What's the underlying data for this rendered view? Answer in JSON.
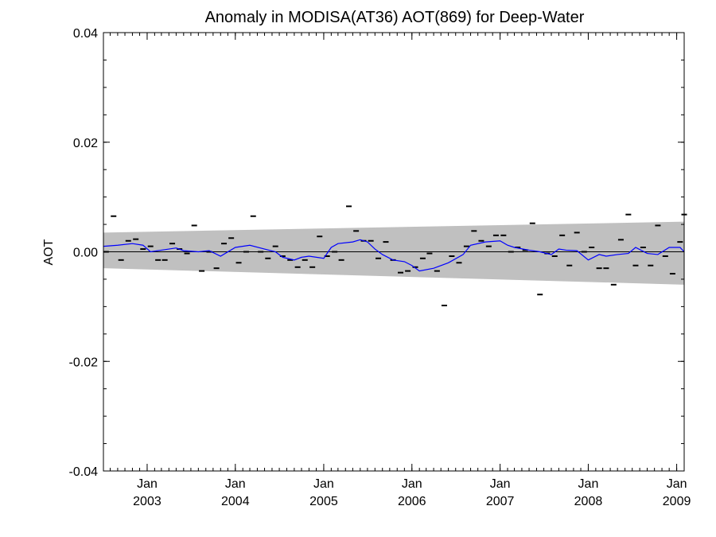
{
  "chart_data": {
    "type": "line",
    "title": "Anomaly in MODISA(AT36) AOT(869) for Deep-Water",
    "ylabel": "AOT",
    "xlabel": "",
    "ylim": [
      -0.04,
      0.04
    ],
    "xlim": [
      "2002-07-04",
      "2009-02-01"
    ],
    "y_ticks": [
      {
        "value": 0.04,
        "label": "0.04"
      },
      {
        "value": 0.02,
        "label": "0.02"
      },
      {
        "value": 0.0,
        "label": "0.00"
      },
      {
        "value": -0.02,
        "label": "-0.02"
      },
      {
        "value": -0.04,
        "label": "-0.04"
      }
    ],
    "x_ticks": [
      {
        "date": "2003-01-01",
        "month": "Jan",
        "year": "2003"
      },
      {
        "date": "2004-01-01",
        "month": "Jan",
        "year": "2004"
      },
      {
        "date": "2005-01-01",
        "month": "Jan",
        "year": "2005"
      },
      {
        "date": "2006-01-01",
        "month": "Jan",
        "year": "2006"
      },
      {
        "date": "2007-01-01",
        "month": "Jan",
        "year": "2007"
      },
      {
        "date": "2008-01-01",
        "month": "Jan",
        "year": "2008"
      },
      {
        "date": "2009-01-01",
        "month": "Jan",
        "year": "2009"
      }
    ],
    "grid": false,
    "zero_line": true,
    "band": {
      "color": "#c0c0c0",
      "upper": [
        {
          "x": "2002-07-04",
          "y": 0.0035
        },
        {
          "x": "2009-02-01",
          "y": 0.0055
        }
      ],
      "lower": [
        {
          "x": "2002-07-04",
          "y": -0.003
        },
        {
          "x": "2009-02-01",
          "y": -0.006
        }
      ]
    },
    "series": [
      {
        "kind": "markers",
        "color": "#000000",
        "points": [
          {
            "x": "2002-07-15",
            "y": 0.0
          },
          {
            "x": "2002-08-15",
            "y": 0.0065
          },
          {
            "x": "2002-09-15",
            "y": -0.0015
          },
          {
            "x": "2002-10-15",
            "y": 0.002
          },
          {
            "x": "2002-11-15",
            "y": 0.0023
          },
          {
            "x": "2002-12-15",
            "y": 0.0005
          },
          {
            "x": "2003-01-15",
            "y": 0.001
          },
          {
            "x": "2003-02-15",
            "y": -0.0015
          },
          {
            "x": "2003-03-15",
            "y": -0.0015
          },
          {
            "x": "2003-04-15",
            "y": 0.0015
          },
          {
            "x": "2003-05-15",
            "y": 0.0005
          },
          {
            "x": "2003-06-15",
            "y": -0.0003
          },
          {
            "x": "2003-07-15",
            "y": 0.0048
          },
          {
            "x": "2003-08-15",
            "y": -0.0035
          },
          {
            "x": "2003-09-15",
            "y": 0.0
          },
          {
            "x": "2003-10-15",
            "y": -0.003
          },
          {
            "x": "2003-11-15",
            "y": 0.0015
          },
          {
            "x": "2003-12-15",
            "y": 0.0025
          },
          {
            "x": "2004-01-15",
            "y": -0.002
          },
          {
            "x": "2004-02-15",
            "y": 0.0
          },
          {
            "x": "2004-03-15",
            "y": 0.0065
          },
          {
            "x": "2004-04-15",
            "y": 0.0
          },
          {
            "x": "2004-05-15",
            "y": -0.0012
          },
          {
            "x": "2004-06-15",
            "y": 0.001
          },
          {
            "x": "2004-07-15",
            "y": -0.0008
          },
          {
            "x": "2004-08-15",
            "y": -0.0015
          },
          {
            "x": "2004-09-15",
            "y": -0.0028
          },
          {
            "x": "2004-10-15",
            "y": -0.0015
          },
          {
            "x": "2004-11-15",
            "y": -0.0028
          },
          {
            "x": "2004-12-15",
            "y": 0.0028
          },
          {
            "x": "2005-01-15",
            "y": -0.0008
          },
          {
            "x": "2005-02-15",
            "y": 0.0
          },
          {
            "x": "2005-03-15",
            "y": -0.0015
          },
          {
            "x": "2005-04-15",
            "y": 0.0083
          },
          {
            "x": "2005-05-15",
            "y": 0.0038
          },
          {
            "x": "2005-06-15",
            "y": 0.002
          },
          {
            "x": "2005-07-15",
            "y": 0.002
          },
          {
            "x": "2005-08-15",
            "y": -0.0012
          },
          {
            "x": "2005-09-15",
            "y": 0.0018
          },
          {
            "x": "2005-10-15",
            "y": -0.0015
          },
          {
            "x": "2005-11-15",
            "y": -0.0038
          },
          {
            "x": "2005-12-15",
            "y": -0.0035
          },
          {
            "x": "2006-01-15",
            "y": -0.0028
          },
          {
            "x": "2006-02-15",
            "y": -0.0012
          },
          {
            "x": "2006-03-15",
            "y": -0.0003
          },
          {
            "x": "2006-04-15",
            "y": -0.0035
          },
          {
            "x": "2006-05-15",
            "y": -0.0098
          },
          {
            "x": "2006-06-15",
            "y": -0.0008
          },
          {
            "x": "2006-07-15",
            "y": -0.002
          },
          {
            "x": "2006-08-15",
            "y": 0.001
          },
          {
            "x": "2006-09-15",
            "y": 0.0038
          },
          {
            "x": "2006-10-15",
            "y": 0.002
          },
          {
            "x": "2006-11-15",
            "y": 0.001
          },
          {
            "x": "2006-12-15",
            "y": 0.003
          },
          {
            "x": "2007-01-15",
            "y": 0.003
          },
          {
            "x": "2007-02-15",
            "y": 0.0
          },
          {
            "x": "2007-03-15",
            "y": 0.0008
          },
          {
            "x": "2007-04-15",
            "y": 0.0003
          },
          {
            "x": "2007-05-15",
            "y": 0.0052
          },
          {
            "x": "2007-06-15",
            "y": -0.0078
          },
          {
            "x": "2007-07-15",
            "y": -0.0003
          },
          {
            "x": "2007-08-15",
            "y": -0.0008
          },
          {
            "x": "2007-09-15",
            "y": 0.003
          },
          {
            "x": "2007-10-15",
            "y": -0.0025
          },
          {
            "x": "2007-11-15",
            "y": 0.0035
          },
          {
            "x": "2007-12-15",
            "y": 0.0
          },
          {
            "x": "2008-01-15",
            "y": 0.0008
          },
          {
            "x": "2008-02-15",
            "y": -0.003
          },
          {
            "x": "2008-03-15",
            "y": -0.003
          },
          {
            "x": "2008-04-15",
            "y": -0.006
          },
          {
            "x": "2008-05-15",
            "y": 0.0022
          },
          {
            "x": "2008-06-15",
            "y": 0.0068
          },
          {
            "x": "2008-07-15",
            "y": -0.0025
          },
          {
            "x": "2008-08-15",
            "y": 0.0008
          },
          {
            "x": "2008-09-15",
            "y": -0.0025
          },
          {
            "x": "2008-10-15",
            "y": 0.0048
          },
          {
            "x": "2008-11-15",
            "y": -0.0008
          },
          {
            "x": "2008-12-15",
            "y": -0.004
          },
          {
            "x": "2009-01-15",
            "y": 0.0018
          },
          {
            "x": "2009-02-01",
            "y": 0.0068
          }
        ]
      },
      {
        "kind": "line",
        "color": "#0000ff",
        "points": [
          {
            "x": "2002-07-04",
            "y": 0.001
          },
          {
            "x": "2002-09-01",
            "y": 0.0012
          },
          {
            "x": "2002-11-01",
            "y": 0.0015
          },
          {
            "x": "2002-12-15",
            "y": 0.0012
          },
          {
            "x": "2003-01-15",
            "y": 0.0
          },
          {
            "x": "2003-03-01",
            "y": 0.0003
          },
          {
            "x": "2003-05-01",
            "y": 0.0007
          },
          {
            "x": "2003-06-01",
            "y": 0.0002
          },
          {
            "x": "2003-08-01",
            "y": 0.0
          },
          {
            "x": "2003-09-15",
            "y": 0.0002
          },
          {
            "x": "2003-11-01",
            "y": -0.0008
          },
          {
            "x": "2004-01-01",
            "y": 0.0008
          },
          {
            "x": "2004-03-01",
            "y": 0.0012
          },
          {
            "x": "2004-05-01",
            "y": 0.0005
          },
          {
            "x": "2004-06-15",
            "y": 0.0
          },
          {
            "x": "2004-07-15",
            "y": -0.001
          },
          {
            "x": "2004-09-01",
            "y": -0.0015
          },
          {
            "x": "2004-10-01",
            "y": -0.001
          },
          {
            "x": "2004-11-01",
            "y": -0.0008
          },
          {
            "x": "2005-01-01",
            "y": -0.0012
          },
          {
            "x": "2005-02-01",
            "y": 0.0008
          },
          {
            "x": "2005-03-01",
            "y": 0.0015
          },
          {
            "x": "2005-05-01",
            "y": 0.0018
          },
          {
            "x": "2005-06-01",
            "y": 0.0022
          },
          {
            "x": "2005-07-01",
            "y": 0.0018
          },
          {
            "x": "2005-08-01",
            "y": 0.0005
          },
          {
            "x": "2005-09-01",
            "y": -0.0005
          },
          {
            "x": "2005-10-15",
            "y": -0.0015
          },
          {
            "x": "2005-12-01",
            "y": -0.0018
          },
          {
            "x": "2006-01-01",
            "y": -0.0025
          },
          {
            "x": "2006-02-01",
            "y": -0.0035
          },
          {
            "x": "2006-04-01",
            "y": -0.003
          },
          {
            "x": "2006-06-01",
            "y": -0.002
          },
          {
            "x": "2006-08-01",
            "y": -0.0005
          },
          {
            "x": "2006-09-01",
            "y": 0.0012
          },
          {
            "x": "2006-11-01",
            "y": 0.0018
          },
          {
            "x": "2007-01-01",
            "y": 0.002
          },
          {
            "x": "2007-02-01",
            "y": 0.0012
          },
          {
            "x": "2007-03-01",
            "y": 0.0008
          },
          {
            "x": "2007-05-01",
            "y": 0.0003
          },
          {
            "x": "2007-06-15",
            "y": 0.0
          },
          {
            "x": "2007-08-01",
            "y": -0.0005
          },
          {
            "x": "2007-09-01",
            "y": 0.0005
          },
          {
            "x": "2007-10-01",
            "y": 0.0003
          },
          {
            "x": "2007-11-15",
            "y": 0.0002
          },
          {
            "x": "2008-01-01",
            "y": -0.0015
          },
          {
            "x": "2008-02-15",
            "y": -0.0005
          },
          {
            "x": "2008-03-15",
            "y": -0.0008
          },
          {
            "x": "2008-05-01",
            "y": -0.0005
          },
          {
            "x": "2008-06-15",
            "y": -0.0003
          },
          {
            "x": "2008-07-15",
            "y": 0.0008
          },
          {
            "x": "2008-09-01",
            "y": -0.0003
          },
          {
            "x": "2008-10-15",
            "y": -0.0005
          },
          {
            "x": "2008-12-01",
            "y": 0.0008
          },
          {
            "x": "2009-01-15",
            "y": 0.0008
          },
          {
            "x": "2009-02-01",
            "y": 0.0
          }
        ]
      }
    ]
  }
}
